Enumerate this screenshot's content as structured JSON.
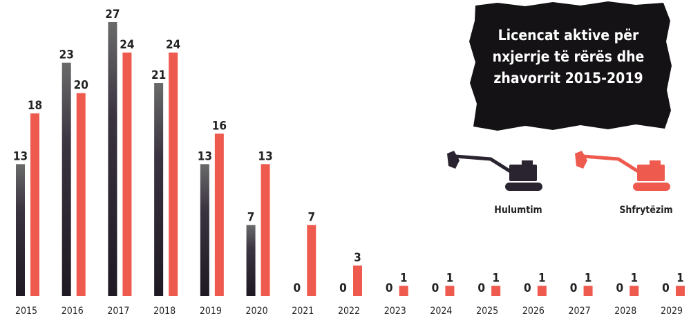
{
  "chart_data": {
    "type": "bar",
    "title": "Licencat aktive për nxjerrje të rërës dhe zhavorrit 2015-2019",
    "categories": [
      "2015",
      "2016",
      "2017",
      "2018",
      "2019",
      "2020",
      "2021",
      "2022",
      "2023",
      "2024",
      "2025",
      "2026",
      "2027",
      "2028",
      "2029"
    ],
    "series": [
      {
        "name": "Hulumtim",
        "color": "#2a2430",
        "values": [
          13,
          23,
          27,
          21,
          13,
          7,
          0,
          0,
          0,
          0,
          0,
          0,
          0,
          0,
          0
        ]
      },
      {
        "name": "Shfrytëzim",
        "color": "#ef5a4f",
        "values": [
          18,
          20,
          24,
          24,
          16,
          13,
          7,
          3,
          1,
          1,
          1,
          1,
          1,
          1,
          1
        ]
      }
    ],
    "legend": "right"
  }
}
